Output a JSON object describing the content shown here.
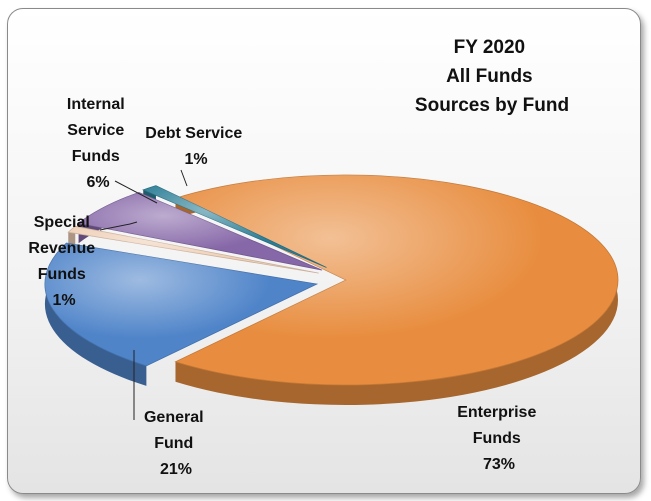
{
  "chart_data": {
    "type": "pie",
    "title_lines": [
      "FY 2020",
      "All Funds",
      "Sources by Fund"
    ],
    "slices": [
      {
        "name": "Enterprise Funds",
        "label_lines": [
          "Enterprise",
          "Funds",
          "73%"
        ],
        "value": 73,
        "color": "#E88D3F"
      },
      {
        "name": "General Fund",
        "label_lines": [
          "General",
          "Fund",
          "21%"
        ],
        "value": 21,
        "color": "#4F84C9"
      },
      {
        "name": "Special Revenue Funds",
        "label_lines": [
          "Special",
          "Revenue",
          "Funds",
          "1%"
        ],
        "value": 1,
        "color": "#EFCFB6"
      },
      {
        "name": "Internal Service Funds",
        "label_lines": [
          "Internal",
          "Service",
          "Funds",
          "6%"
        ],
        "value": 6,
        "color": "#8667A8"
      },
      {
        "name": "Debt Service",
        "label_lines": [
          "Debt Service",
          "1%"
        ],
        "value": 1,
        "color": "#2C7E96"
      }
    ]
  }
}
